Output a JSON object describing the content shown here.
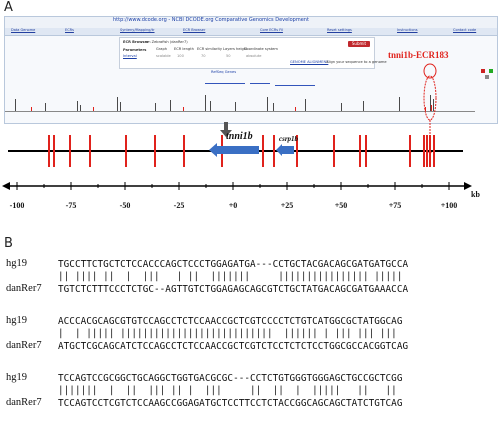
{
  "panel_a": {
    "letter": "A",
    "browser": {
      "url": "http://www.dcode.org - NCBI DCODE.org Comparative Genomics Development",
      "nav_items": [
        "Data Genome",
        "ECRs",
        "Synteny/Mapping/tr",
        "ECR Browser",
        "Core ECRs Fil",
        "Reset settings",
        "Instructions",
        "Contact code"
      ],
      "ecr_browser_label": "ECR Browser",
      "species_label": "on Zebrafish (danRer7)",
      "parameters_label": "Parameters",
      "params": [
        "Graph",
        "ECR length",
        "ECR similarity",
        "Layers height",
        "Coordinate system"
      ],
      "param_values": [
        "scalable",
        "100",
        "70",
        "50",
        "absolute"
      ],
      "interval_label": "Interval",
      "submit_label": "Submit",
      "genome_alignment_link": "GENOME ALIGNMENT",
      "align_hint": "Align your sequence to a genome",
      "refseq_label": "RefSeq Genes",
      "ecr_label": "tnni1b-ECR183"
    },
    "schematic": {
      "gene_main": "tnni1b",
      "gene_small": "csrp1b",
      "scale_unit": "kb",
      "scale_ticks": [
        "-100",
        "-75",
        "-50",
        "-25",
        "+0",
        "+25",
        "+50",
        "+75",
        "+100"
      ]
    },
    "colors": {
      "ecr_red": "#e0221c",
      "gene_blue": "#3a6fc4",
      "text_dark": "#111111"
    }
  },
  "panel_b": {
    "letter": "B",
    "blocks": [
      {
        "top_name": "hg19",
        "top_seq": "TGCCTTCTGCTCTCCACCCAGCTCCCTGGAGATGA---CCTGCTACGACAGCGATGATGCCA",
        "match": "|| |||| ||  |  |||   | ||  |||||||     |||||||||||||||| |||||",
        "bottom_name": "danRer7",
        "bottom_seq": "TGTCTCTTTCCCTCTGC--AGTTGTCTGGAGAGCAGCGTCTGCTATGACAGCGATGAAACCA"
      },
      {
        "top_name": "hg19",
        "top_seq": "ACCCACGCAGCGTGTCCAGCCTCTCCAACCGCTCGTCCCCTCTGTCATGGCGCTATGGCAG",
        "match": "|  | ||||| |||||||||||||||||||||||||||  |||||| | ||| ||| |||",
        "bottom_name": "danRer7",
        "bottom_seq": "ATGCTCGCAGCATCTCCAGCCTCTCCAACCGCTCGTCTCCTCTCTCCTGGCGCCACGGTCAG"
      },
      {
        "top_name": "hg19",
        "top_seq": "TCCAGTCCGCGGCTGCAGGCTGGTGACGCGC---CCTCTGTGGGTGGGAGCTGCCGCTCGG",
        "match": "|||||||  |  ||  ||| || |  |||     ||  ||  |  |||||   ||   ||",
        "bottom_name": "danRer7",
        "bottom_seq": "TCCAGTCCTCGTCTCCAAGCCGGAGATGCTCCTTCCTCTACCGGCAGCAGCTATCTGTCAG"
      }
    ]
  }
}
